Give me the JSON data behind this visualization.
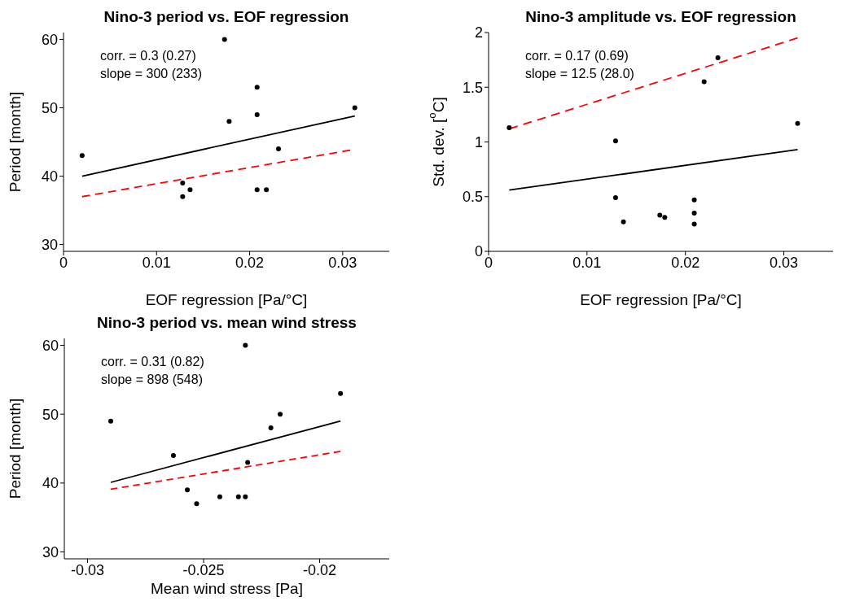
{
  "chart_data": [
    {
      "type": "scatter",
      "title": "Nino-3 period vs. EOF regression",
      "xlabel": "EOF regression [Pa/°C]",
      "ylabel": "Period [month]",
      "xlim": [
        0,
        0.035
      ],
      "ylim": [
        29,
        61
      ],
      "xticks": [
        0,
        0.01,
        0.02,
        0.03
      ],
      "yticks": [
        30,
        40,
        50,
        60
      ],
      "grid": false,
      "legend": false,
      "annotations": [
        "corr. = 0.3 (0.27)",
        "slope = 300 (233)"
      ],
      "series": [
        {
          "marker": "circle",
          "color": "#000000",
          "x": [
            0.002,
            0.0128,
            0.0128,
            0.0136,
            0.0173,
            0.0178,
            0.0208,
            0.0208,
            0.0208,
            0.0218,
            0.0231,
            0.0313
          ],
          "values": [
            43,
            39,
            37,
            38,
            60,
            48,
            53,
            49,
            38,
            38,
            44,
            50
          ]
        },
        {
          "type": "line",
          "color": "#000000",
          "line_style": "solid",
          "x": [
            0.002,
            0.0313
          ],
          "values": [
            40,
            48.8
          ]
        },
        {
          "type": "line",
          "color": "#ff0000",
          "line_style": "dashed",
          "x": [
            0.002,
            0.0308
          ],
          "values": [
            37,
            43.8
          ]
        }
      ]
    },
    {
      "type": "scatter",
      "title": "Nino-3 amplitude vs. EOF regression",
      "xlabel": "EOF regression [Pa/°C]",
      "ylabel": "Std. dev. [$^{o}$C]",
      "xlim": [
        0,
        0.035
      ],
      "ylim": [
        0,
        2
      ],
      "xticks": [
        0,
        0.01,
        0.02,
        0.03
      ],
      "yticks": [
        0,
        0.5,
        1,
        1.5,
        2
      ],
      "grid": false,
      "legend": false,
      "annotations": [
        "corr. = 0.17 (0.69)",
        "slope = 12.5 (28.0)"
      ],
      "series": [
        {
          "marker": "circle",
          "color": "#000000",
          "x": [
            0.0021,
            0.0129,
            0.0129,
            0.0137,
            0.0174,
            0.0179,
            0.0209,
            0.0209,
            0.0209,
            0.0219,
            0.0233,
            0.0314
          ],
          "values": [
            1.13,
            1.01,
            0.49,
            0.27,
            0.33,
            0.31,
            0.47,
            0.35,
            0.25,
            1.55,
            1.77,
            1.17
          ]
        },
        {
          "type": "line",
          "color": "#000000",
          "line_style": "solid",
          "x": [
            0.0021,
            0.0314
          ],
          "values": [
            0.56,
            0.93
          ]
        },
        {
          "type": "line",
          "color": "#ff0000",
          "line_style": "dashed",
          "x": [
            0.0021,
            0.0314
          ],
          "values": [
            1.12,
            1.95
          ]
        }
      ]
    },
    {
      "type": "scatter",
      "title": "Nino-3 period vs. mean wind stress",
      "xlabel": "Mean wind stress [Pa]",
      "ylabel": "Period [month]",
      "xlim": [
        -0.031,
        -0.017
      ],
      "ylim": [
        29,
        61
      ],
      "xticks": [
        -0.03,
        -0.025,
        -0.02
      ],
      "yticks": [
        30,
        40,
        50,
        60
      ],
      "grid": false,
      "legend": false,
      "annotations": [
        "corr. = 0.31 (0.82)",
        "slope = 898 (548)"
      ],
      "series": [
        {
          "marker": "circle",
          "color": "#000000",
          "x": [
            -0.029,
            -0.0263,
            -0.0257,
            -0.0253,
            -0.0243,
            -0.0235,
            -0.0232,
            -0.0232,
            -0.0231,
            -0.0221,
            -0.0217,
            -0.0191
          ],
          "values": [
            49,
            44,
            39,
            37,
            38,
            38,
            38,
            60,
            43,
            48,
            50,
            53
          ]
        },
        {
          "type": "line",
          "color": "#000000",
          "line_style": "solid",
          "x": [
            -0.029,
            -0.0191
          ],
          "values": [
            40.1,
            49
          ]
        },
        {
          "type": "line",
          "color": "#ff0000",
          "line_style": "dashed",
          "x": [
            -0.029,
            -0.0191
          ],
          "values": [
            39.1,
            44.6
          ]
        }
      ]
    }
  ]
}
